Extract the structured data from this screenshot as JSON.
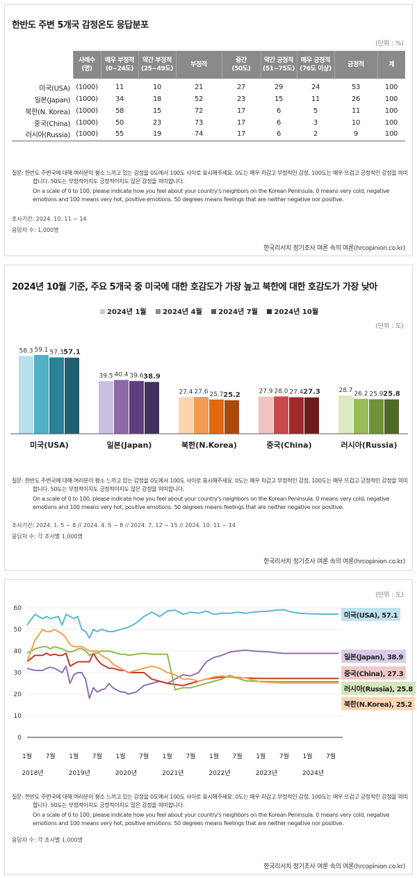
{
  "panel1": {
    "title": "한반도 주변 5개국 감정온도 응답분포",
    "unit": "(단위 : %)",
    "headers": [
      {
        "l1": "사례수",
        "l2": "(명)"
      },
      {
        "l1": "매우 부정적",
        "l2": "(0~24도)"
      },
      {
        "l1": "약간 부정적",
        "l2": "(25~49도)"
      },
      {
        "l1": "부정적",
        "l2": ""
      },
      {
        "l1": "중간",
        "l2": "(50도)"
      },
      {
        "l1": "약간 긍정적",
        "l2": "(51~75도)"
      },
      {
        "l1": "매우 긍정적",
        "l2": "(76도 이상)"
      },
      {
        "l1": "긍정적",
        "l2": ""
      },
      {
        "l1": "계",
        "l2": ""
      }
    ],
    "rows": [
      [
        "미국(USA)",
        "(1000)",
        "11",
        "10",
        "21",
        "27",
        "29",
        "24",
        "53",
        "100"
      ],
      [
        "일본(Japan)",
        "(1000)",
        "34",
        "18",
        "52",
        "23",
        "15",
        "11",
        "26",
        "100"
      ],
      [
        "북한(N. Korea)",
        "(1000)",
        "58",
        "15",
        "72",
        "17",
        "6",
        "5",
        "11",
        "100"
      ],
      [
        "중국(China)",
        "(1000)",
        "50",
        "23",
        "73",
        "17",
        "6",
        "3",
        "10",
        "100"
      ],
      [
        "러시아(Russia)",
        "(1000)",
        "55",
        "19",
        "74",
        "17",
        "6",
        "2",
        "9",
        "100"
      ]
    ],
    "question": "질문: 한반도 주변국에 대해 여러분이 평소 느끼고 있는 감정을 0도에서 100도 사이로 표시해주세요. 0도는 매우 차갑고 부정적인 감정, 100도는 매우 뜨겁고 긍정적인 감정을 의미합니다. 50도는 부정적이지도 긍정적이지도 않은 감정을 의미합니다.",
    "question_en": "On a scale of 0 to 100, please indicate how you feel about your country's neighbors on the Korean Peninsula. 0 means very cold, negative emotions and 100 means very hot, positive emotions. 50 degrees means feelings that are neither negative nor positive.",
    "period": "조사기간: 2024. 10. 11 ~ 14",
    "respondents": "응답자 수: 1,000명",
    "source": "한국리서치 정기조사 여론 속의 여론(hrcopinion.co.kr)"
  },
  "panel2": {
    "title": "2024년 10월 기준, 주요 5개국 중 미국에 대한 호감도가 가장 높고 북한에 대한 호감도가 가장 낮아",
    "unit": "(단위 : 도)",
    "question": "질문: 한반도 주변국에 대해 여러분이 평소 느끼고 있는 감정을 0도에서 100도 사이로 표시해주세요. 0도는 매우 차갑고 부정적인 감정, 100도는 매우 뜨겁고 긍정적인 감정을 의미합니다. 50도는 부정적이지도 긍정적이지도 않은 감정을 의미합니다.",
    "question_en": "On a scale of 0 to 100, please indicate how you feel about your country's neighbors on the Korean Peninsula. 0 means very cold, negative emotions and 100 means very hot, positive emotions. 50 degrees means feelings that are neither negative nor positive.",
    "period": "조사기간: 2024. 1. 5 ~ 8 // 2024. 4. 5 ~ 8 // 2024. 7. 12 ~ 15 // 2024. 10. 11 ~ 14",
    "respondents": "응답자 수: 각 조사별 1,000명",
    "source": "한국리서치 정기조사 여론 속의 여론(hrcopinion.co.kr)"
  },
  "panel3": {
    "unit": "(단위 : 도)",
    "question": "질문: 한반도 주변국에 대해 여러분이 평소 느끼고 있는 감정을 0도에서 100도 사이로 표시해주세요. 0도는 매우 차갑고 부정적인 감정, 100도는 매우 뜨겁고 긍정적인 감정을 의미합니다. 50도는 부정적이지도 긍정적이지도 않은 감정을 의미합니다.",
    "question_en": "On a scale of 0 to 100, please indicate how you feel about your country's neighbors on the Korean Peninsula. 0 means very cold, negative emotions and 100 means very hot, positive emotions. 50 degrees means feelings that are neither negative nor positive.",
    "respondents": "응답자 수: 각 조사별 1,000명",
    "source": "한국리서치 정기조사 여론 속의 여론(hrcopinion.co.kr)"
  },
  "chart_data": [
    {
      "type": "bar",
      "title": "2024년 10월 기준, 주요 5개국 중 미국에 대한 호감도가 가장 높고 북한에 대한 호감도가 가장 낮아",
      "categories": [
        "미국(USA)",
        "일본(Japan)",
        "북한(N.Korea)",
        "중국(China)",
        "러시아(Russia)"
      ],
      "series_names": [
        "2024년 1월",
        "2024년 4월",
        "2024년 7월",
        "2024년 10월"
      ],
      "values": [
        [
          58.3,
          59.1,
          57.3,
          57.1
        ],
        [
          39.5,
          40.4,
          39.6,
          38.9
        ],
        [
          27.4,
          27.6,
          25.7,
          25.2
        ],
        [
          27.9,
          28.0,
          27.4,
          27.3
        ],
        [
          28.7,
          26.2,
          25.9,
          25.8
        ]
      ],
      "colors": [
        [
          "#b8dfea",
          "#4fb0c6",
          "#2b8196",
          "#1f5f70"
        ],
        [
          "#cdbfe0",
          "#8b6aa7",
          "#5e3f7c",
          "#44305c"
        ],
        [
          "#fdd3b0",
          "#f49a52",
          "#e06a12",
          "#a84a0c"
        ],
        [
          "#f2c2c2",
          "#c84a4a",
          "#9e2a2a",
          "#6e1c1c"
        ],
        [
          "#dde9c4",
          "#98bb58",
          "#6f9238",
          "#4e6a24"
        ]
      ],
      "legend_colors": [
        "#c9c9c9",
        "#8c8c8c",
        "#5b5b5b",
        "#333333"
      ],
      "ylim": [
        0,
        70
      ]
    },
    {
      "type": "line",
      "xlabel": "",
      "ylabel": "",
      "ylim": [
        0,
        60
      ],
      "yticks": [
        0,
        10,
        20,
        30,
        40,
        50,
        60
      ],
      "xticks": [
        "1월",
        "7월",
        "1월",
        "7월",
        "1월",
        "7월",
        "1월",
        "7월",
        "1월",
        "7월",
        "1월",
        "7월",
        "1월",
        "7월"
      ],
      "year_labels": [
        "2018년",
        "2019년",
        "2020년",
        "2021년",
        "2022년",
        "2023년",
        "2024년"
      ],
      "x_months": [
        0,
        2,
        4,
        5,
        6,
        7,
        8,
        9,
        10,
        11,
        12,
        13,
        14,
        15,
        16,
        17,
        18,
        19,
        20,
        21,
        22,
        23,
        24,
        25,
        26,
        28,
        30,
        32,
        34,
        36,
        38,
        40,
        42,
        44,
        46,
        48,
        50,
        52,
        54,
        56,
        58,
        60,
        62,
        64,
        66,
        68,
        70,
        72,
        74,
        76,
        78,
        80
      ],
      "series": [
        {
          "name": "미국(USA), 57.1",
          "color": "#58b9d1",
          "values": [
            52,
            57,
            55,
            56,
            55,
            55.5,
            56,
            52,
            57,
            56,
            55,
            56,
            50,
            49,
            46,
            50,
            49,
            50,
            49.5,
            49,
            49,
            49.5,
            50,
            50.5,
            51,
            53,
            56,
            58,
            56,
            58.5,
            59,
            57,
            58,
            57.5,
            58.5,
            57,
            57.5,
            57.5,
            58,
            57.5,
            58,
            58.3,
            58.5,
            59,
            59.1,
            58,
            57.5,
            57.3,
            57.2,
            57.1,
            57.1,
            57.1
          ]
        },
        {
          "name": "일본(Japan), 38.9",
          "color": "#8e6fb2",
          "values": [
            32,
            31,
            31,
            32,
            32.5,
            32,
            31,
            30,
            33,
            25,
            29,
            30,
            30,
            27,
            18,
            23,
            21,
            22,
            22.5,
            25,
            23,
            22,
            21,
            21,
            20,
            21,
            24,
            25,
            26,
            25,
            27,
            29,
            28.5,
            30,
            35,
            37,
            38,
            39.5,
            40,
            40.4,
            40,
            39.8,
            39.6,
            39.2,
            38.9,
            38.9,
            38.9,
            38.9,
            38.9,
            38.9,
            38.9,
            38.9
          ]
        },
        {
          "name": "중국(China), 27.3",
          "color": "#c0392b",
          "values": [
            35,
            38,
            38,
            39,
            38,
            38.5,
            38,
            38,
            39,
            33,
            34,
            35,
            35,
            35,
            35,
            39,
            36,
            34,
            33,
            32,
            32,
            31.5,
            31,
            31,
            30,
            30,
            30,
            27,
            26,
            25,
            24.5,
            24,
            25,
            26,
            27,
            27.5,
            27.9,
            28,
            27.7,
            27.5,
            27.4,
            27.3,
            27.3,
            27.3,
            27.3,
            27.3,
            27.3,
            27.3,
            27.3,
            27.3,
            27.3,
            27.3
          ]
        },
        {
          "name": "러시아(Russia), 25.8",
          "color": "#8fb84a",
          "values": [
            39,
            41,
            42,
            42,
            41,
            42,
            41.5,
            41,
            40,
            39.5,
            40,
            41,
            41,
            40,
            38,
            39,
            39,
            40,
            40,
            40,
            39.5,
            39,
            38.5,
            38.5,
            38,
            38.5,
            39,
            38.5,
            38.5,
            38.5,
            22,
            23,
            23,
            24,
            25,
            26,
            27,
            28.7,
            27.5,
            26.2,
            26,
            25.9,
            25.9,
            25.8,
            25.8,
            25.8,
            25.8,
            25.8,
            25.8,
            25.8,
            25.8,
            25.8
          ]
        },
        {
          "name": "북한(N.Korea), 25.2",
          "color": "#f0a050",
          "values": [
            35,
            45,
            50,
            49,
            49,
            50,
            49,
            48,
            46,
            43,
            42,
            42,
            42,
            41,
            40,
            40,
            40,
            38,
            37,
            36,
            34,
            33,
            32,
            31,
            30,
            31,
            32,
            33,
            32,
            30,
            29,
            27,
            27,
            26,
            27,
            28,
            28.5,
            28,
            27.4,
            27.6,
            26.5,
            25.7,
            25.5,
            25.3,
            25.2,
            25.2,
            25.2,
            25.2,
            25.2,
            25.2,
            25.2,
            25.2
          ]
        }
      ]
    }
  ]
}
